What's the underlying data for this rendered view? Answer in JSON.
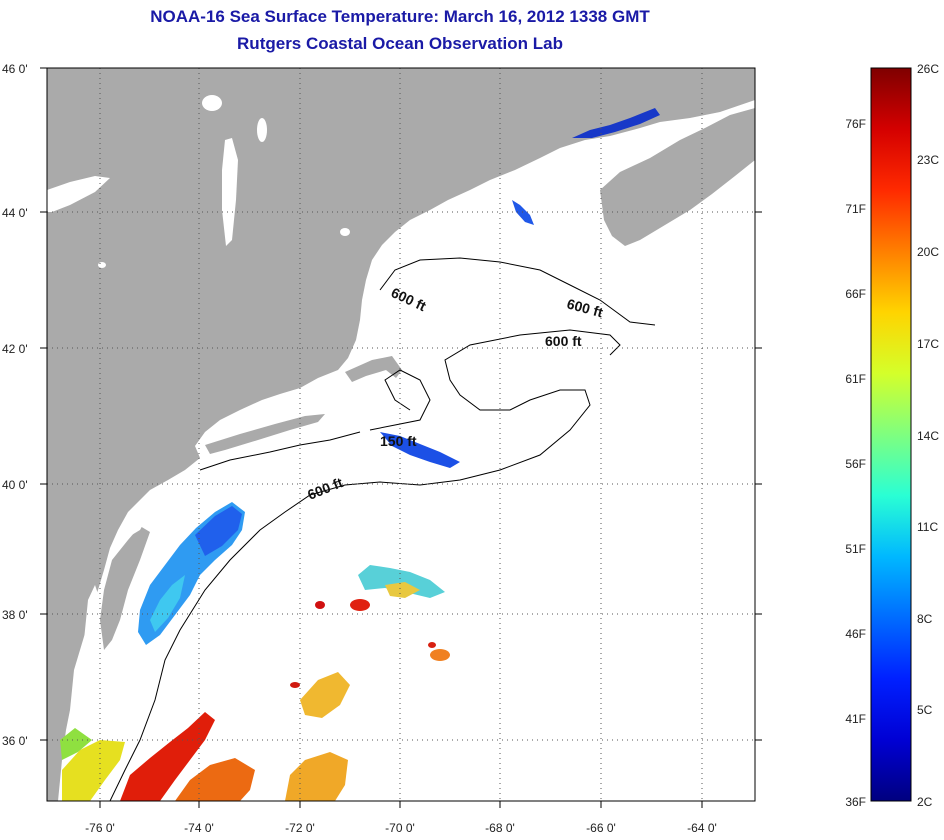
{
  "header": {
    "title": "NOAA-16 Sea Surface Temperature:  March 16, 2012 1338 GMT",
    "subtitle": "Rutgers Coastal Ocean Observation Lab"
  },
  "map": {
    "lon_range": [
      -77,
      -63.5
    ],
    "lat_range": [
      35,
      46
    ],
    "lon_ticks": [
      "-76 0'",
      "-74 0'",
      "-72 0'",
      "-70 0'",
      "-68 0'",
      "-66 0'",
      "-64 0'"
    ],
    "lat_ticks": [
      "46 0'",
      "44 0'",
      "42 0'",
      "40 0'",
      "38 0'",
      "36 0'"
    ],
    "grid": "dotted",
    "land_color": "#aaaaaa",
    "water_color": "#ffffff"
  },
  "contours": {
    "labels": [
      "600 ft",
      "600 ft",
      "600 ft",
      "150 ft",
      "600 ft"
    ]
  },
  "colorbar": {
    "celsius_labels": [
      "26C",
      "23C",
      "20C",
      "17C",
      "14C",
      "11C",
      "8C",
      "5C",
      "2C"
    ],
    "fahrenheit_labels": [
      "76F",
      "71F",
      "66F",
      "61F",
      "56F",
      "51F",
      "46F",
      "41F",
      "36F"
    ],
    "colors_top_to_bottom": [
      "#7f0000",
      "#d40000",
      "#ff2a00",
      "#ff7f00",
      "#ffd400",
      "#d4ff2a",
      "#7fff7f",
      "#2affd4",
      "#00b8ff",
      "#006cff",
      "#0020ff",
      "#0000d4",
      "#00007f"
    ]
  }
}
